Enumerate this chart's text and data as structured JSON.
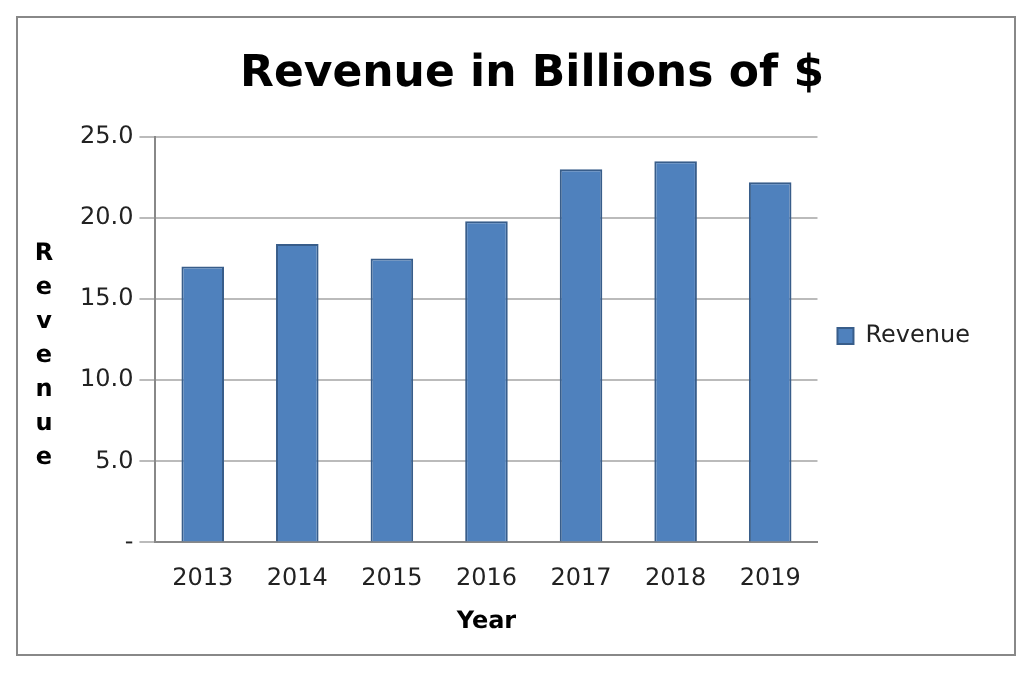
{
  "chart_data": {
    "type": "bar",
    "title": "Revenue in Billions of $",
    "xlabel": "Year",
    "ylabel": "Revenue",
    "categories": [
      "2013",
      "2014",
      "2015",
      "2016",
      "2017",
      "2018",
      "2019"
    ],
    "series": [
      {
        "name": "Revenue",
        "color": "#4f81bd",
        "values": [
          17.0,
          18.4,
          17.5,
          19.8,
          23.0,
          23.5,
          22.2
        ]
      }
    ],
    "ylim": [
      0,
      25
    ],
    "yticks": [
      {
        "value": 0,
        "label": "-"
      },
      {
        "value": 5,
        "label": "5.0"
      },
      {
        "value": 10,
        "label": "10.0"
      },
      {
        "value": 15,
        "label": "15.0"
      },
      {
        "value": 20,
        "label": "20.0"
      },
      {
        "value": 25,
        "label": "25.0"
      }
    ],
    "grid": "y",
    "legend": "right"
  }
}
